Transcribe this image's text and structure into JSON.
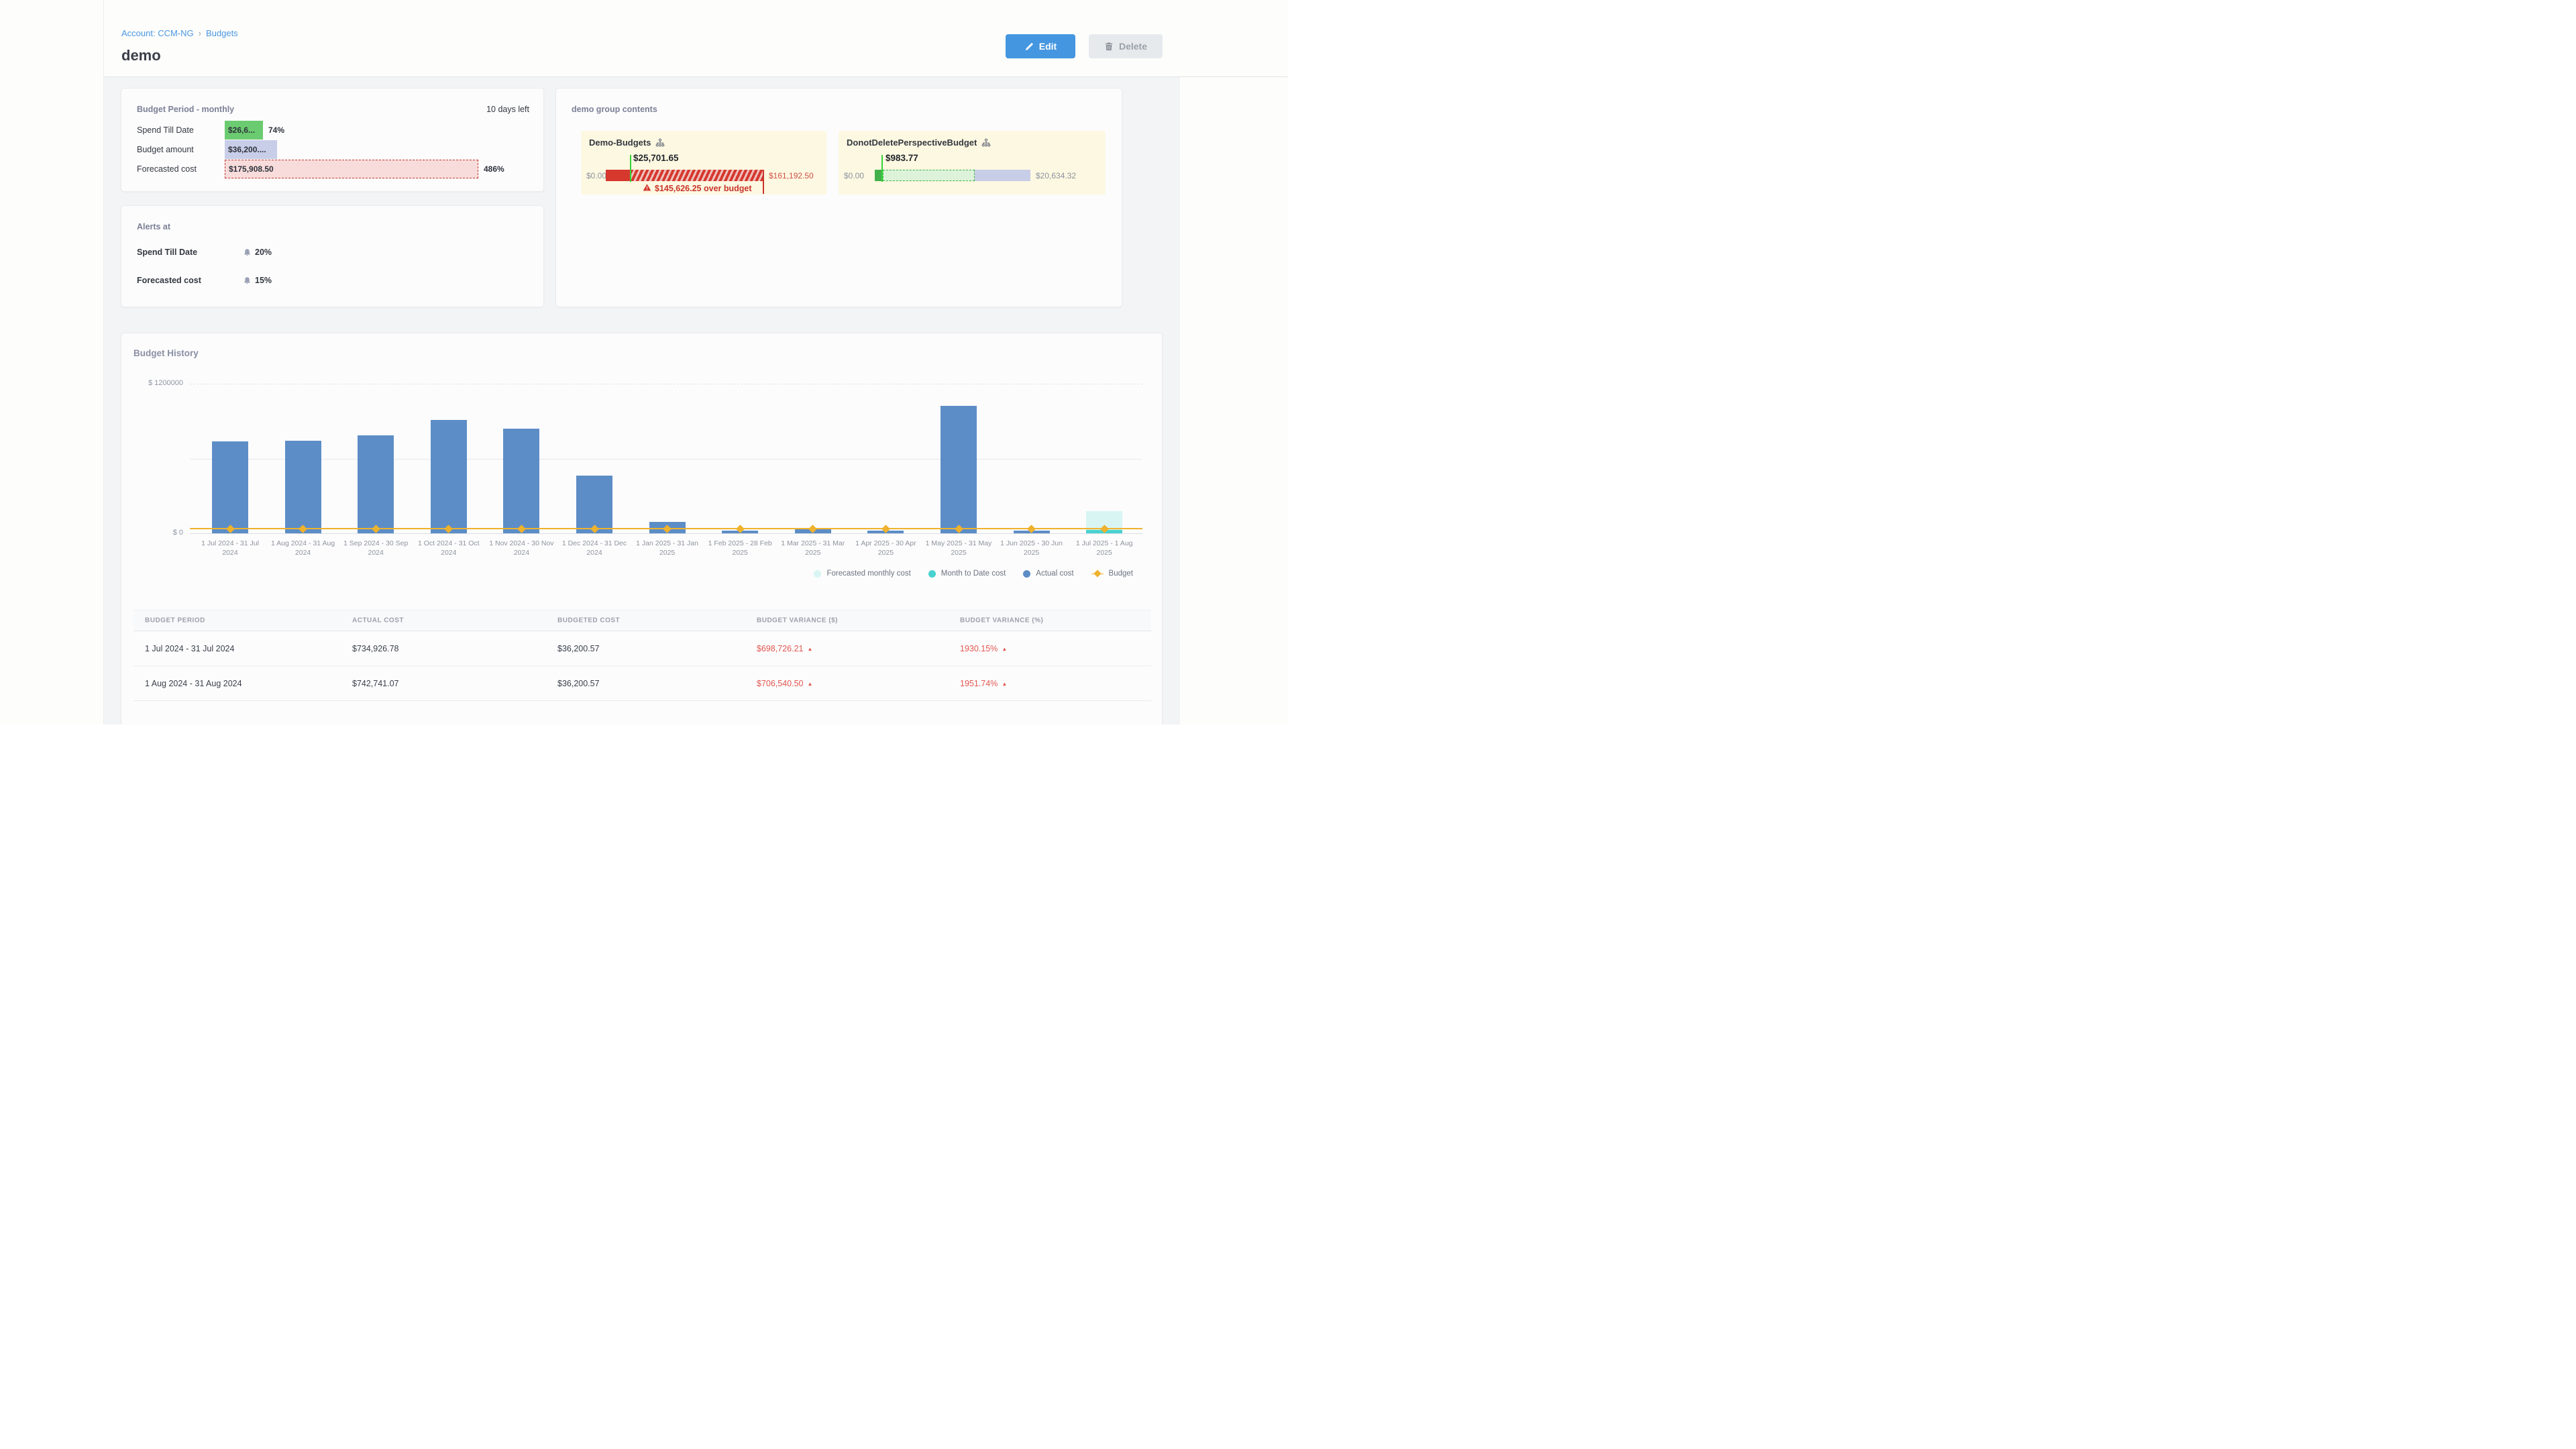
{
  "breadcrumb": {
    "account_link": "Account: CCM-NG",
    "separator": "›",
    "current": "Budgets"
  },
  "page_title": "demo",
  "toolbar": {
    "edit_label": "Edit",
    "delete_label": "Delete"
  },
  "colors": {
    "accent_blue": "#4596e0",
    "link_blue": "#4b97e3",
    "spend_green": "#6bcb70",
    "budget_lavender": "#c8cde8",
    "forecast_pink": "#f7dcdb",
    "over_red": "#d6382e",
    "budget_orange": "#efb22d",
    "actual_blue": "#5d8dc6",
    "forecast_cyan": "#d8f5f3",
    "mtd_teal": "#49d2cf",
    "alert_red": "#c9342b"
  },
  "budget_period_card": {
    "title": "Budget Period - monthly",
    "days_left": "10 days left",
    "rows": [
      {
        "label": "Spend Till Date",
        "value": "$26,6...",
        "pct": 74,
        "pct_label": "74%",
        "style": "spend"
      },
      {
        "label": "Budget amount",
        "value": "$36,200....",
        "pct": 100,
        "pct_label": "",
        "style": "budget"
      },
      {
        "label": "Forecasted cost",
        "value": "$175,908.50",
        "pct": 486,
        "pct_label": "486%",
        "style": "forecast"
      }
    ]
  },
  "alerts_card": {
    "title": "Alerts at",
    "rows": [
      {
        "label": "Spend Till Date",
        "value": "20%"
      },
      {
        "label": "Forecasted cost",
        "value": "15%"
      }
    ]
  },
  "group_card": {
    "title": "demo group contents",
    "items": [
      {
        "name": "Demo-Budgets",
        "spend": "$25,701.65",
        "min": "$0.00",
        "max": "$161,192.50",
        "over_budget": "$145,626.25 over budget"
      },
      {
        "name": "DonotDeletePerspectiveBudget",
        "spend": "$983.77",
        "min": "$0.00",
        "max": "$20,634.32"
      }
    ]
  },
  "history_card": {
    "title": "Budget History",
    "y_axis_top": "$ 1200000",
    "y_axis_zero": "$ 0"
  },
  "chart_data": {
    "type": "bar",
    "title": "Budget History",
    "categories": [
      "1 Jul 2024 - 31 Jul 2024",
      "1 Aug 2024 - 31 Aug 2024",
      "1 Sep 2024 - 30 Sep 2024",
      "1 Oct 2024 - 31 Oct 2024",
      "1 Nov 2024 - 30 Nov 2024",
      "1 Dec 2024 - 31 Dec 2024",
      "1 Jan 2025 - 31 Jan 2025",
      "1 Feb 2025 - 28 Feb 2025",
      "1 Mar 2025 - 31 Mar 2025",
      "1 Apr 2025 - 30 Apr 2025",
      "1 May 2025 - 31 May 2025",
      "1 Jun 2025 - 30 Jun 2025",
      "1 Jul 2025 - 1 Aug 2025"
    ],
    "series": [
      {
        "name": "Actual cost",
        "color": "#5d8dc6",
        "kind": "bar",
        "values": [
          734927,
          742741,
          785000,
          911000,
          839000,
          463000,
          90000,
          20000,
          45000,
          20000,
          1020000,
          20000,
          null
        ]
      },
      {
        "name": "Forecasted monthly cost",
        "color": "#d8f5f3",
        "kind": "bar",
        "values": [
          null,
          null,
          null,
          null,
          null,
          null,
          null,
          null,
          null,
          null,
          null,
          null,
          175908
        ]
      },
      {
        "name": "Month to Date cost",
        "color": "#49d2cf",
        "kind": "bar",
        "values": [
          null,
          null,
          null,
          null,
          null,
          null,
          null,
          null,
          null,
          null,
          null,
          null,
          26600
        ]
      },
      {
        "name": "Budget",
        "color": "#efb22d",
        "kind": "line",
        "values": [
          36200.57,
          36200.57,
          36200.57,
          36200.57,
          36200.57,
          36200.57,
          36200.57,
          36200.57,
          36200.57,
          36200.57,
          36200.57,
          36200.57,
          36200.57
        ]
      }
    ],
    "legend": [
      {
        "label": "Forecasted monthly cost",
        "color": "#d8f5f3",
        "marker": "circle"
      },
      {
        "label": "Month to Date cost",
        "color": "#49d2cf",
        "marker": "circle"
      },
      {
        "label": "Actual cost",
        "color": "#5d8dc6",
        "marker": "circle"
      },
      {
        "label": "Budget",
        "color": "#efb22d",
        "marker": "diamond"
      }
    ],
    "ylim": [
      0,
      1200000
    ],
    "y_tick_labels": [
      "$ 1200000",
      "$ 0"
    ],
    "legend_position": "bottom-right",
    "grid": "horizontal-dashed"
  },
  "table": {
    "headers": [
      "BUDGET PERIOD",
      "ACTUAL COST",
      "BUDGETED COST",
      "BUDGET VARIANCE ($)",
      "BUDGET VARIANCE (%)"
    ],
    "rows": [
      {
        "period": "1 Jul 2024 - 31 Jul 2024",
        "actual": "$734,926.78",
        "budgeted": "$36,200.57",
        "variance_usd": "$698,726.21",
        "variance_pct": "1930.15%",
        "direction": "up"
      },
      {
        "period": "1 Aug 2024 - 31 Aug 2024",
        "actual": "$742,741.07",
        "budgeted": "$36,200.57",
        "variance_usd": "$706,540.50",
        "variance_pct": "1951.74%",
        "direction": "up"
      }
    ]
  }
}
